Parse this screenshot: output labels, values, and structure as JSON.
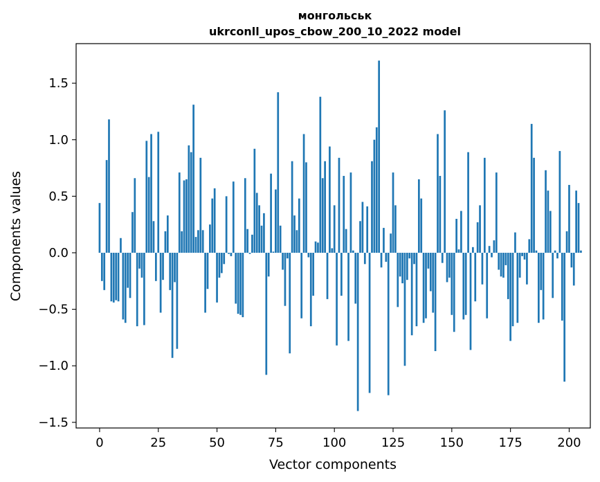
{
  "chart_data": {
    "type": "bar",
    "title_line1": "монгольськ",
    "title_line2": "ukrconll_upos_cbow_200_10_2022 model",
    "xlabel": "Vector components",
    "ylabel": "Components values",
    "xlim": [
      -10,
      209
    ],
    "ylim": [
      -1.55,
      1.85
    ],
    "x_ticks": [
      0,
      25,
      50,
      75,
      100,
      125,
      150,
      175,
      200
    ],
    "x_tick_labels": [
      "0",
      "25",
      "50",
      "75",
      "100",
      "125",
      "150",
      "175",
      "200"
    ],
    "y_ticks": [
      -1.5,
      -1.0,
      -0.5,
      0.0,
      0.5,
      1.0,
      1.5
    ],
    "y_tick_labels": [
      "−1.5",
      "−1.0",
      "−0.5",
      "0.0",
      "0.5",
      "1.0",
      "1.5"
    ],
    "grid": false,
    "bar_color": "#1f77b4",
    "values": [
      0.44,
      -0.25,
      -0.33,
      0.82,
      1.18,
      -0.43,
      -0.44,
      -0.42,
      -0.43,
      0.13,
      -0.59,
      -0.62,
      -0.31,
      -0.4,
      0.36,
      0.66,
      -0.65,
      -0.14,
      -0.22,
      -0.64,
      0.99,
      0.67,
      1.05,
      0.28,
      -0.25,
      1.07,
      -0.53,
      -0.24,
      0.19,
      0.33,
      -0.33,
      -0.93,
      -0.26,
      -0.85,
      0.71,
      0.19,
      0.64,
      0.65,
      0.95,
      0.89,
      1.31,
      0.14,
      0.2,
      0.84,
      0.2,
      -0.53,
      -0.32,
      0.25,
      0.48,
      0.57,
      -0.44,
      -0.22,
      -0.18,
      -0.1,
      0.5,
      -0.01,
      -0.03,
      0.63,
      -0.45,
      -0.54,
      -0.55,
      -0.57,
      0.66,
      0.21,
      -0.01,
      0.16,
      0.92,
      0.53,
      0.42,
      0.24,
      0.35,
      -1.08,
      -0.21,
      0.7,
      0.01,
      0.56,
      1.42,
      0.24,
      -0.15,
      -0.47,
      -0.05,
      -0.89,
      0.81,
      0.33,
      0.2,
      0.48,
      -0.58,
      1.05,
      0.8,
      -0.04,
      -0.65,
      -0.38,
      0.1,
      0.09,
      1.38,
      0.66,
      0.81,
      -0.41,
      0.94,
      0.04,
      0.42,
      -0.82,
      0.84,
      -0.38,
      0.68,
      0.21,
      -0.78,
      0.71,
      0.02,
      -0.45,
      -1.4,
      0.28,
      0.45,
      -0.1,
      0.41,
      -1.24,
      0.81,
      1.0,
      1.11,
      1.7,
      -0.13,
      0.22,
      -0.08,
      -1.26,
      0.17,
      0.71,
      0.42,
      -0.48,
      -0.21,
      -0.27,
      -1.0,
      -0.24,
      -0.05,
      -0.73,
      -0.1,
      -0.65,
      0.65,
      0.48,
      -0.62,
      -0.58,
      -0.14,
      -0.34,
      -0.53,
      -0.87,
      1.05,
      0.68,
      -0.09,
      1.26,
      -0.26,
      -0.22,
      -0.55,
      -0.7,
      0.3,
      0.03,
      0.37,
      -0.59,
      -0.55,
      0.89,
      -0.86,
      0.05,
      -0.43,
      0.27,
      0.42,
      -0.28,
      0.84,
      -0.58,
      0.06,
      -0.04,
      0.11,
      0.71,
      -0.15,
      -0.21,
      -0.22,
      -0.11,
      -0.41,
      -0.78,
      -0.65,
      0.18,
      -0.62,
      -0.22,
      -0.03,
      -0.06,
      -0.28,
      0.12,
      1.14,
      0.84,
      0.02,
      -0.62,
      -0.33,
      -0.59,
      0.73,
      0.55,
      0.37,
      -0.4,
      0.02,
      -0.05,
      0.9,
      -0.6,
      -1.14,
      0.19,
      0.6,
      -0.13,
      -0.29,
      0.55,
      0.44,
      0.02
    ]
  }
}
